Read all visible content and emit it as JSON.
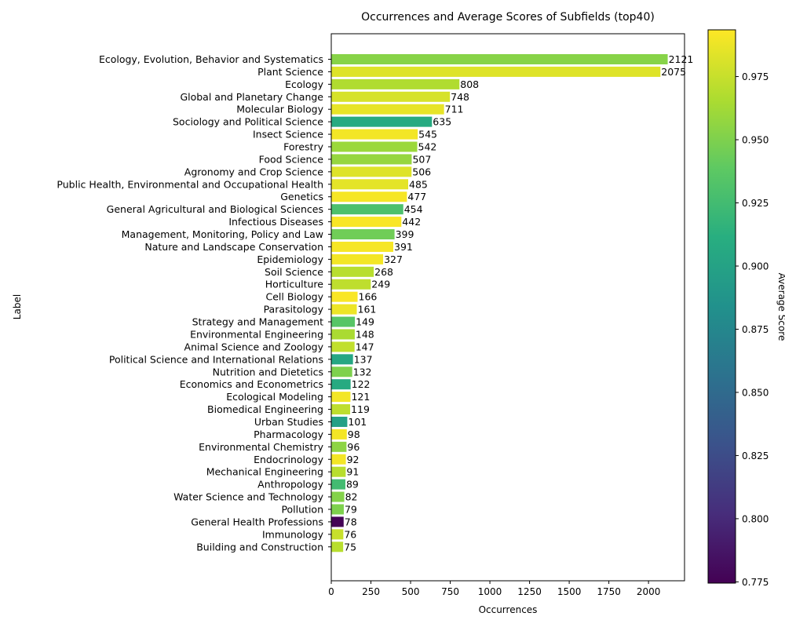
{
  "chart_data": {
    "type": "bar",
    "orientation": "horizontal",
    "title": "Occurrences and Average Scores of Subfields (top40)",
    "xlabel": "Occurrences",
    "ylabel": "Label",
    "xlim": [
      0,
      2227
    ],
    "xticks": [
      0,
      250,
      500,
      750,
      1000,
      1250,
      1500,
      1750,
      2000
    ],
    "grid": false,
    "colorbar": {
      "label": "Average Score",
      "colormap": "viridis",
      "range": [
        0.7745,
        0.9935
      ],
      "ticks": [
        "0.775",
        "0.800",
        "0.825",
        "0.850",
        "0.875",
        "0.900",
        "0.925",
        "0.950",
        "0.975"
      ]
    },
    "categories": [
      "Ecology, Evolution, Behavior and Systematics",
      "Plant Science",
      "Ecology",
      "Global and Planetary Change",
      "Molecular Biology",
      "Sociology and Political Science",
      "Insect Science",
      "Forestry",
      "Food Science",
      "Agronomy and Crop Science",
      "Public Health, Environmental and Occupational Health",
      "Genetics",
      "General Agricultural and Biological Sciences",
      "Infectious Diseases",
      "Management, Monitoring, Policy and Law",
      "Nature and Landscape Conservation",
      "Epidemiology",
      "Soil Science",
      "Horticulture",
      "Cell Biology",
      "Parasitology",
      "Strategy and Management",
      "Environmental Engineering",
      "Animal Science and Zoology",
      "Political Science and International Relations",
      "Nutrition and Dietetics",
      "Economics and Econometrics",
      "Ecological Modeling",
      "Biomedical Engineering",
      "Urban Studies",
      "Pharmacology",
      "Environmental Chemistry",
      "Endocrinology",
      "Mechanical Engineering",
      "Anthropology",
      "Water Science and Technology",
      "Pollution",
      "General Health Professions",
      "Immunology",
      "Building and Construction"
    ],
    "values": [
      2121,
      2075,
      808,
      748,
      711,
      635,
      545,
      542,
      507,
      506,
      485,
      477,
      454,
      442,
      399,
      391,
      327,
      268,
      249,
      166,
      161,
      149,
      148,
      147,
      137,
      132,
      122,
      121,
      119,
      101,
      98,
      96,
      92,
      91,
      89,
      82,
      79,
      78,
      76,
      75
    ],
    "value_labels": [
      "2121",
      "2075",
      "808",
      "748",
      "711",
      "635",
      "545",
      "542",
      "507",
      "506",
      "485",
      "477",
      "454",
      "442",
      "399",
      "391",
      "327",
      "268",
      "249",
      "166",
      "161",
      "149",
      "148",
      "147",
      "137",
      "132",
      "122",
      "121",
      "119",
      "101",
      "98",
      "96",
      "92",
      "91",
      "89",
      "82",
      "79",
      "78",
      "76",
      "75"
    ],
    "scores": [
      0.953,
      0.983,
      0.967,
      0.98,
      0.986,
      0.908,
      0.99,
      0.96,
      0.958,
      0.983,
      0.985,
      0.991,
      0.93,
      0.992,
      0.945,
      0.991,
      0.99,
      0.97,
      0.972,
      0.992,
      0.988,
      0.935,
      0.965,
      0.973,
      0.905,
      0.95,
      0.908,
      0.99,
      0.972,
      0.898,
      0.99,
      0.955,
      0.99,
      0.97,
      0.925,
      0.952,
      0.95,
      0.776,
      0.975,
      0.97
    ]
  }
}
